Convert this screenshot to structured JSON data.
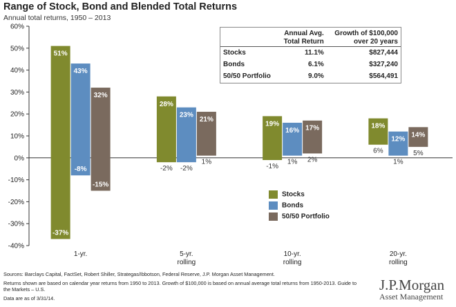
{
  "header": {
    "title": "Range of Stock, Bond and Blended Total Returns",
    "subtitle": "Annual total returns, 1950 – 2013"
  },
  "chart_data": {
    "type": "bar",
    "subtype": "floating-range",
    "ylim": [
      -40,
      60
    ],
    "yticks": [
      "-40%",
      "-30%",
      "-20%",
      "-10%",
      "0%",
      "10%",
      "20%",
      "30%",
      "40%",
      "50%",
      "60%"
    ],
    "ytick_values": [
      -40,
      -30,
      -20,
      -10,
      0,
      10,
      20,
      30,
      40,
      50,
      60
    ],
    "categories": [
      {
        "line1": "1-yr.",
        "line2": ""
      },
      {
        "line1": "5-yr.",
        "line2": "rolling"
      },
      {
        "line1": "10-yr.",
        "line2": "rolling"
      },
      {
        "line1": "20-yr.",
        "line2": "rolling"
      }
    ],
    "series": [
      {
        "name": "Stocks",
        "color": "#808a2e",
        "max": [
          51,
          28,
          19,
          18
        ],
        "min": [
          -37,
          -2,
          -1,
          6
        ],
        "max_labels": [
          "51%",
          "28%",
          "19%",
          "18%"
        ],
        "min_labels": [
          "-37%",
          "-2%",
          "-1%",
          "6%"
        ]
      },
      {
        "name": "Bonds",
        "color": "#5d8dc0",
        "max": [
          43,
          23,
          16,
          12
        ],
        "min": [
          -8,
          -2,
          1,
          1
        ],
        "max_labels": [
          "43%",
          "23%",
          "16%",
          "12%"
        ],
        "min_labels": [
          "-8%",
          "-2%",
          "1%",
          "1%"
        ]
      },
      {
        "name": "50/50 Portfolio",
        "color": "#7a6a5e",
        "max": [
          32,
          21,
          17,
          14
        ],
        "min": [
          -15,
          1,
          2,
          5
        ],
        "max_labels": [
          "32%",
          "21%",
          "17%",
          "14%"
        ],
        "min_labels": [
          "-15%",
          "1%",
          "2%",
          "5%"
        ]
      }
    ],
    "legend_position": "bottom-right"
  },
  "summary_table": {
    "headers": [
      "",
      "Annual Avg.\nTotal Return",
      "Growth of $100,000\nover 20 years"
    ],
    "rows": [
      {
        "name": "Stocks",
        "avg": "11.1%",
        "growth": "$827,444"
      },
      {
        "name": "Bonds",
        "avg": "6.1%",
        "growth": "$327,240"
      },
      {
        "name": "50/50 Portfolio",
        "avg": "9.0%",
        "growth": "$564,491"
      }
    ]
  },
  "legend": {
    "items": [
      "Stocks",
      "Bonds",
      "50/50 Portfolio"
    ]
  },
  "footer": {
    "sources": "Sources: Barclays Capital, FactSet, Robert Shiller, Strategas/Ibbotson, Federal Reserve, J.P. Morgan Asset Management.",
    "note": "Returns shown are based on calendar year returns from 1950 to 2013. Growth of $100,000 is based on annual average total returns from 1950-2013. Guide to the Markets – U.S.",
    "date": "Data are as of 3/31/14."
  },
  "logo": {
    "name": "J.P.Morgan",
    "sub": "Asset Management"
  }
}
